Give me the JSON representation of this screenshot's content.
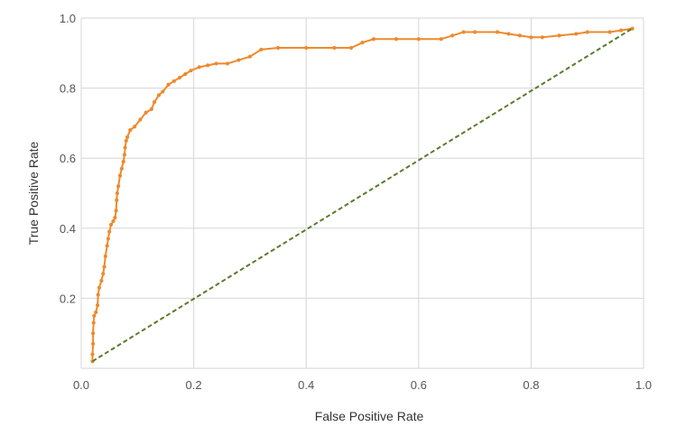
{
  "chart_data": {
    "type": "line",
    "title": "",
    "xlabel": "False Positive Rate",
    "ylabel": "True Positive Rate",
    "xlim": [
      0.0,
      1.0
    ],
    "ylim": [
      0.0,
      1.0
    ],
    "x_ticks": [
      "0.0",
      "0.2",
      "0.4",
      "0.6",
      "0.8",
      "1.0"
    ],
    "y_ticks": [
      "0.2",
      "0.4",
      "0.6",
      "0.8",
      "1.0"
    ],
    "grid": true,
    "series": [
      {
        "color": "#ee8a2c",
        "markers": true,
        "points": [
          [
            0.02,
            0.02
          ],
          [
            0.02,
            0.04
          ],
          [
            0.021,
            0.07
          ],
          [
            0.021,
            0.1
          ],
          [
            0.022,
            0.13
          ],
          [
            0.023,
            0.15
          ],
          [
            0.026,
            0.16
          ],
          [
            0.029,
            0.18
          ],
          [
            0.03,
            0.21
          ],
          [
            0.032,
            0.23
          ],
          [
            0.036,
            0.25
          ],
          [
            0.039,
            0.27
          ],
          [
            0.041,
            0.29
          ],
          [
            0.043,
            0.32
          ],
          [
            0.046,
            0.35
          ],
          [
            0.048,
            0.37
          ],
          [
            0.05,
            0.39
          ],
          [
            0.053,
            0.41
          ],
          [
            0.057,
            0.42
          ],
          [
            0.06,
            0.43
          ],
          [
            0.062,
            0.45
          ],
          [
            0.063,
            0.48
          ],
          [
            0.064,
            0.5
          ],
          [
            0.066,
            0.52
          ],
          [
            0.069,
            0.55
          ],
          [
            0.072,
            0.57
          ],
          [
            0.075,
            0.59
          ],
          [
            0.077,
            0.61
          ],
          [
            0.078,
            0.63
          ],
          [
            0.08,
            0.65
          ],
          [
            0.082,
            0.66
          ],
          [
            0.087,
            0.68
          ],
          [
            0.095,
            0.69
          ],
          [
            0.105,
            0.71
          ],
          [
            0.115,
            0.73
          ],
          [
            0.125,
            0.74
          ],
          [
            0.13,
            0.76
          ],
          [
            0.138,
            0.78
          ],
          [
            0.145,
            0.79
          ],
          [
            0.155,
            0.81
          ],
          [
            0.165,
            0.82
          ],
          [
            0.175,
            0.83
          ],
          [
            0.185,
            0.84
          ],
          [
            0.195,
            0.85
          ],
          [
            0.21,
            0.86
          ],
          [
            0.225,
            0.865
          ],
          [
            0.24,
            0.87
          ],
          [
            0.26,
            0.87
          ],
          [
            0.28,
            0.88
          ],
          [
            0.3,
            0.89
          ],
          [
            0.32,
            0.91
          ],
          [
            0.35,
            0.915
          ],
          [
            0.4,
            0.915
          ],
          [
            0.45,
            0.915
          ],
          [
            0.48,
            0.915
          ],
          [
            0.5,
            0.93
          ],
          [
            0.52,
            0.94
          ],
          [
            0.56,
            0.94
          ],
          [
            0.6,
            0.94
          ],
          [
            0.64,
            0.94
          ],
          [
            0.66,
            0.95
          ],
          [
            0.68,
            0.96
          ],
          [
            0.7,
            0.96
          ],
          [
            0.74,
            0.96
          ],
          [
            0.76,
            0.955
          ],
          [
            0.78,
            0.95
          ],
          [
            0.8,
            0.945
          ],
          [
            0.82,
            0.945
          ],
          [
            0.85,
            0.95
          ],
          [
            0.88,
            0.955
          ],
          [
            0.9,
            0.96
          ],
          [
            0.94,
            0.96
          ],
          [
            0.96,
            0.965
          ],
          [
            0.98,
            0.97
          ]
        ]
      },
      {
        "color": "#5b7a2c",
        "dashed": true,
        "markers": false,
        "points": [
          [
            0.02,
            0.02
          ],
          [
            0.98,
            0.97
          ]
        ]
      }
    ]
  }
}
